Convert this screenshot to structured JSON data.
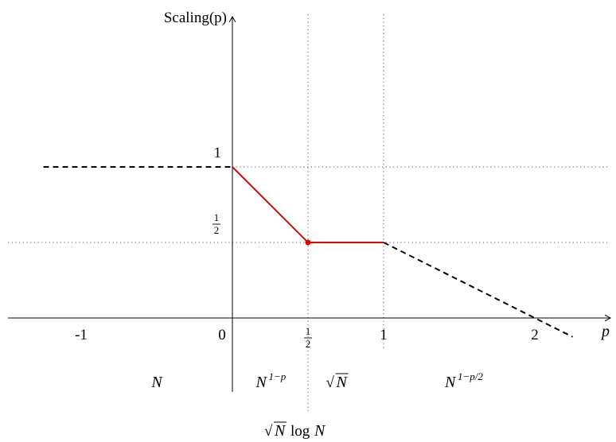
{
  "chart_data": {
    "type": "line",
    "title": "",
    "ylabel": "Scaling(p)",
    "xlabel": "p",
    "xlim": [
      -1.5,
      2.55
    ],
    "ylim": [
      -0.3,
      2.0
    ],
    "x_ticks": [
      {
        "value": -1,
        "label": "-1"
      },
      {
        "value": 0,
        "label": "0"
      },
      {
        "value": 0.5,
        "label": "½",
        "fraction": true
      },
      {
        "value": 1,
        "label": "1"
      },
      {
        "value": 2,
        "label": "2"
      }
    ],
    "y_ticks": [
      {
        "value": 1,
        "label": "1"
      },
      {
        "value": 0.5,
        "label": "½",
        "fraction": true
      }
    ],
    "guide_lines": {
      "vertical": [
        0.5,
        1
      ],
      "horizontal": [
        1,
        0.5
      ],
      "style": "dotted"
    },
    "series": [
      {
        "style": "dashed",
        "color": "#000000",
        "x": [
          -1.25,
          0
        ],
        "y": [
          1,
          1
        ]
      },
      {
        "style": "solid",
        "color": "#e00000",
        "x": [
          0,
          0.5,
          1
        ],
        "y": [
          1,
          0.5,
          0.5
        ]
      },
      {
        "style": "dashed",
        "color": "#000000",
        "x": [
          1,
          2.25
        ],
        "y": [
          0.5,
          -0.125
        ]
      }
    ],
    "marked_point": {
      "x": 0.5,
      "y": 0.5,
      "color": "#e00000"
    },
    "regions": [
      {
        "x_center": -0.5,
        "base": "N",
        "sup": ""
      },
      {
        "x_center": 0.25,
        "base": "N",
        "sup": "1−p"
      },
      {
        "x_center": 0.75,
        "base": "√N",
        "sup": ""
      },
      {
        "x_center": 1.5,
        "base": "N",
        "sup": "1−p/2"
      }
    ],
    "boundary_label": {
      "x": 0.5,
      "text": "√N log N"
    }
  }
}
